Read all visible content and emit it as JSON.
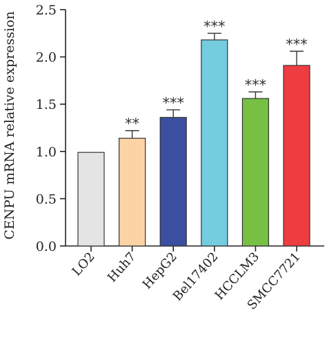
{
  "chart_data": {
    "type": "bar",
    "title": "",
    "xlabel": "",
    "ylabel": "CENPU mRNA relative expression",
    "ylim": [
      0,
      2.5
    ],
    "yticks": [
      0.0,
      0.5,
      1.0,
      1.5,
      2.0,
      2.5
    ],
    "ytick_labels": [
      "0.0",
      "0.5",
      "1.0",
      "1.5",
      "2.0",
      "2.5"
    ],
    "categories": [
      "LO2",
      "Huh7",
      "HepG2",
      "Bel17402",
      "HCCLM3",
      "SMCC7721"
    ],
    "values": [
      0.99,
      1.14,
      1.36,
      2.18,
      1.56,
      1.91
    ],
    "errors": [
      0,
      0.08,
      0.08,
      0.07,
      0.07,
      0.15
    ],
    "significance": [
      "",
      "**",
      "***",
      "***",
      "***",
      "***"
    ],
    "colors": [
      "#e4e4e4",
      "#fcd3a4",
      "#3b4fa0",
      "#73cddf",
      "#77c043",
      "#ee3d40"
    ],
    "grid": false,
    "legend": "none"
  }
}
